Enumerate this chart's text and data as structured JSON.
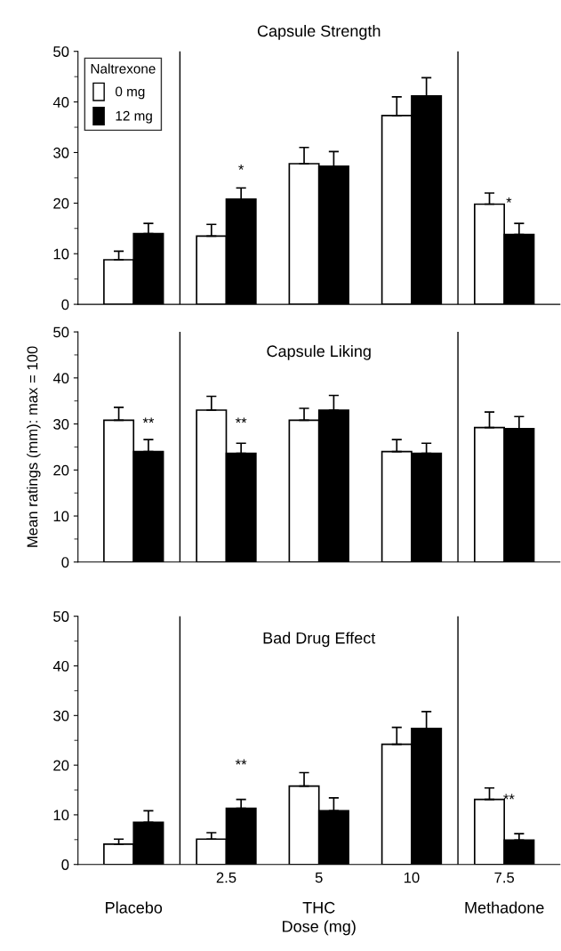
{
  "chart_data": [
    {
      "type": "bar",
      "title": "Capsule Strength",
      "categories": [
        null,
        "2.5",
        "5",
        "10",
        "7.5"
      ],
      "tick_labels": "y",
      "legend": "top left",
      "legend_title": "Naltrexone",
      "ylim": [
        0,
        50
      ],
      "yticks": [
        0,
        10,
        20,
        30,
        40,
        50
      ],
      "series": [
        {
          "name": "0 mg",
          "color": "#ffffff",
          "values": [
            8.8,
            13.5,
            27.8,
            37.3,
            19.8
          ],
          "errors": [
            [
              8.8,
              10.5
            ],
            [
              13.5,
              15.8
            ],
            [
              27.8,
              31
            ],
            [
              37.3,
              41
            ],
            [
              19.8,
              22
            ]
          ]
        },
        {
          "name": "12 mg",
          "color": "#000000",
          "values": [
            14,
            20.8,
            27.3,
            41.2,
            13.8
          ],
          "errors": [
            [
              14,
              16
            ],
            [
              20.8,
              23
            ],
            [
              27.3,
              30.2
            ],
            [
              41.2,
              44.8
            ],
            [
              13.8,
              16
            ]
          ]
        }
      ],
      "annotations": [
        "*",
        "*"
      ]
    },
    {
      "type": "bar",
      "title": "Capsule Liking",
      "categories": [
        null,
        "2.5",
        "5",
        "10",
        "7.5"
      ],
      "tick_labels": "y",
      "ylabel": "Mean ratings (mm): max = 100",
      "ylim": [
        0,
        50
      ],
      "yticks": [
        0,
        10,
        20,
        30,
        40,
        50
      ],
      "series": [
        {
          "color": "#ffffff",
          "values": [
            30.8,
            33,
            30.8,
            24,
            29.2
          ],
          "errors": [
            [
              30.8,
              33.6
            ],
            [
              33,
              36
            ],
            [
              30.8,
              33.4
            ],
            [
              24,
              26.6
            ],
            [
              29.2,
              32.6
            ]
          ]
        },
        {
          "color": "#000000",
          "values": [
            24,
            23.6,
            33,
            23.6,
            29
          ],
          "errors": [
            [
              24,
              26.6
            ],
            [
              23.6,
              25.8
            ],
            [
              33,
              36.2
            ],
            [
              23.6,
              25.8
            ],
            [
              29,
              31.6
            ]
          ]
        }
      ],
      "annotations": [
        "**",
        "**"
      ]
    },
    {
      "type": "bar",
      "title": "Bad Drug Effect",
      "categories": [
        null,
        "2.5",
        "5",
        "10",
        "7.5"
      ],
      "xlabel": "Dose (mg)",
      "ylim": [
        0,
        50
      ],
      "yticks": [
        0,
        10,
        20,
        30,
        40,
        50
      ],
      "series": [
        {
          "color": "#ffffff",
          "values": [
            4.1,
            5.1,
            15.8,
            24.2,
            13.1
          ],
          "errors": [
            [
              4.1,
              5.1
            ],
            [
              5.1,
              6.4
            ],
            [
              15.8,
              18.5
            ],
            [
              24.2,
              27.6
            ],
            [
              13.1,
              15.4
            ]
          ]
        },
        {
          "color": "#000000",
          "values": [
            8.5,
            11.3,
            10.8,
            27.4,
            4.9
          ],
          "errors": [
            [
              8.5,
              10.8
            ],
            [
              11.3,
              13.1
            ],
            [
              10.8,
              13.4
            ],
            [
              27.4,
              30.8
            ],
            [
              4.9,
              6.2
            ]
          ]
        }
      ],
      "annotations": [
        "**",
        "**",
        "Placebo",
        "THC",
        "Methadone"
      ]
    }
  ]
}
